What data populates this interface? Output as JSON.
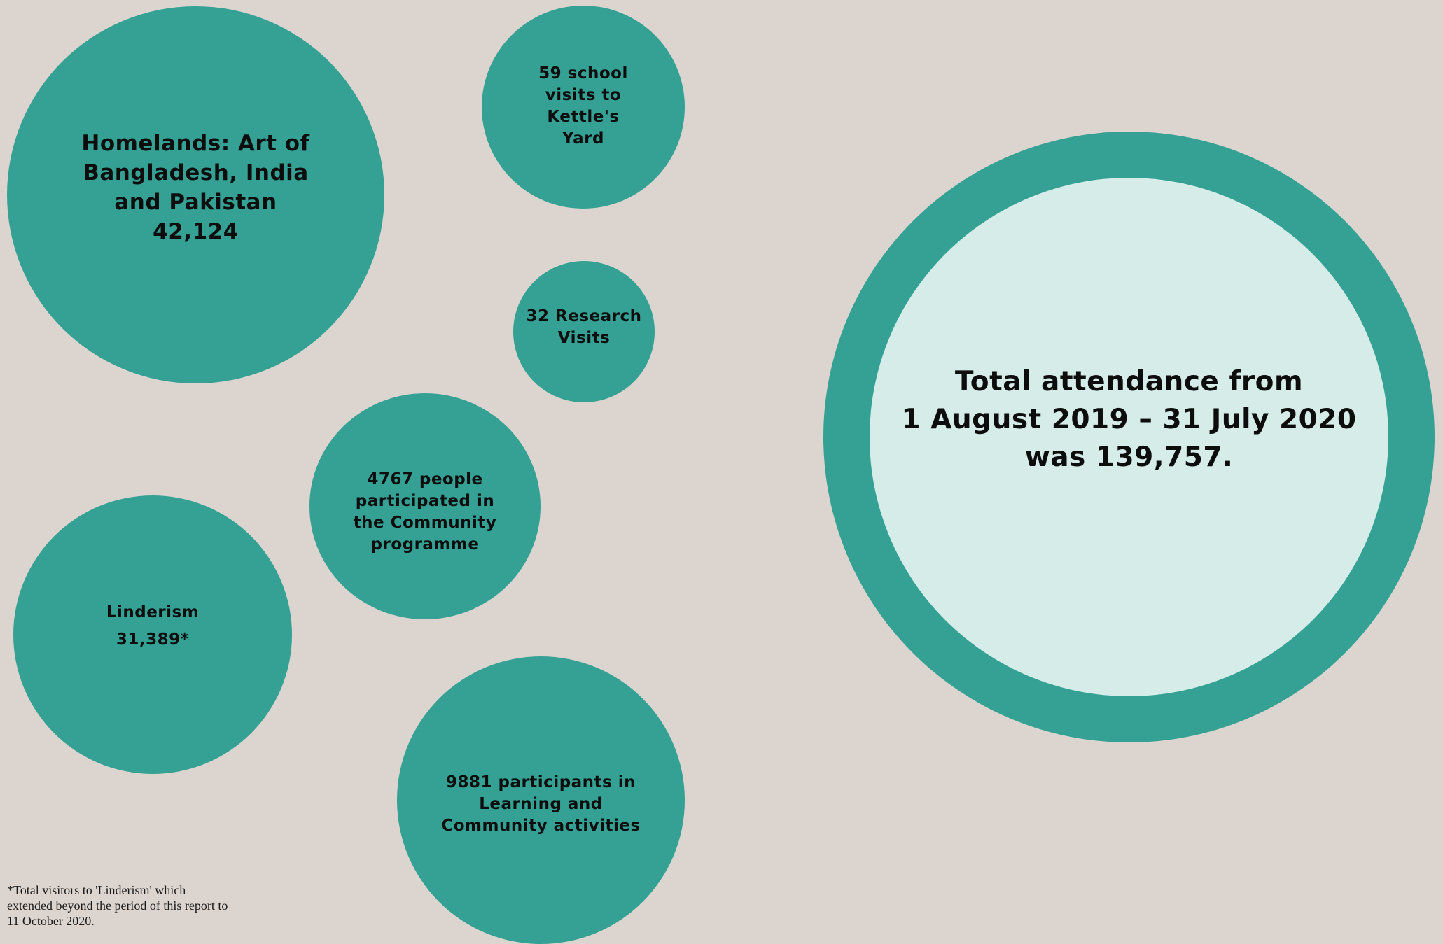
{
  "colors": {
    "background": "#dcd5cf",
    "bubble": "#34a194",
    "inner_circle": "#d5ece8",
    "text": "#0d0d0d"
  },
  "bubbles": {
    "homelands": "Homelands: Art of\nBangladesh, India\nand Pakistan\n42,124",
    "school_visits": "59 school\nvisits to\nKettle's\nYard",
    "research_visits": "32 Research\nVisits",
    "community": "4767 people\nparticipated in\nthe Community\nprogramme",
    "linderism": "Linderism\n31,389*",
    "learning": "9881 participants in\nLearning and\nCommunity activities"
  },
  "total": {
    "text": "Total attendance from\n1 August 2019 – 31 July 2020\nwas 139,757."
  },
  "footnote": "*Total visitors to 'Linderism' which\nextended beyond the period of this report to\n11 October 2020."
}
